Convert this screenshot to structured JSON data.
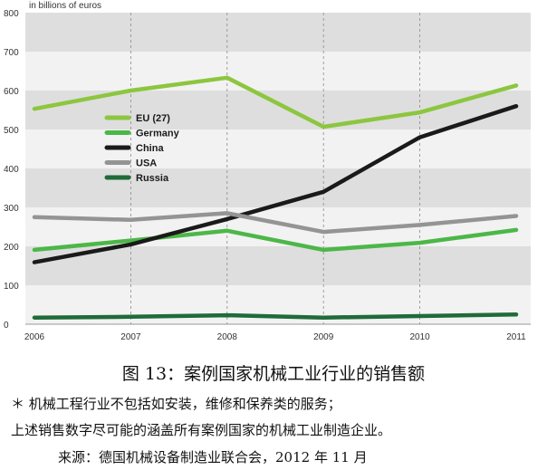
{
  "chart_data": {
    "type": "line",
    "unit_label": "in billions of euros",
    "x": [
      "2006",
      "2007",
      "2008",
      "2009",
      "2010",
      "2011"
    ],
    "yticks": [
      0,
      100,
      200,
      300,
      400,
      500,
      600,
      700,
      800
    ],
    "ylim": [
      0,
      800
    ],
    "grid": "alternating horizontal bands, dashed vertical lines",
    "legend_position": "upper-left inside plot",
    "series": [
      {
        "name": "EU (27)",
        "color": "#8cc63f",
        "values": [
          553,
          600,
          633,
          507,
          544,
          613
        ]
      },
      {
        "name": "Germany",
        "color": "#4cb748",
        "values": [
          191,
          215,
          240,
          191,
          209,
          242
        ]
      },
      {
        "name": "China",
        "color": "#1a1a1a",
        "values": [
          159,
          205,
          270,
          340,
          480,
          560
        ]
      },
      {
        "name": "USA",
        "color": "#949494",
        "values": [
          275,
          268,
          285,
          237,
          255,
          278
        ]
      },
      {
        "name": "Russia",
        "color": "#1f6b3a",
        "values": [
          17,
          19,
          23,
          17,
          21,
          25
        ]
      }
    ]
  },
  "caption": {
    "title": "图 13：案例国家机械工业行业的销售额",
    "note1": "＊ 机械工程行业不包括如安装，维修和保养类的服务；",
    "note2": "上述销售数字尽可能的涵盖所有案例国家的机械工业制造企业。",
    "source": "来源：德国机械设备制造业联合会，2012 年 11 月"
  }
}
